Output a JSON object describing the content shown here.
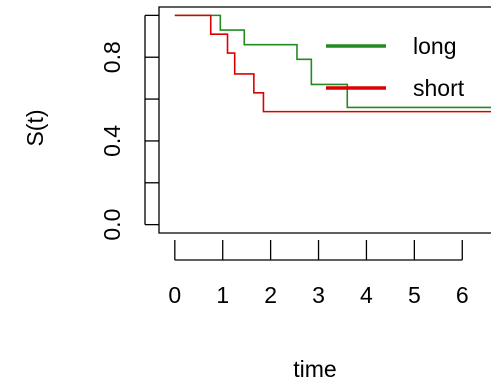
{
  "chart_data": {
    "type": "line",
    "plot": "survival step curves",
    "xlabel": "time",
    "ylabel": "S(t)",
    "xlim": [
      -0.33,
      6.6
    ],
    "ylim": [
      -0.04,
      1.04
    ],
    "x_ticks": [
      0,
      1,
      2,
      3,
      4,
      5,
      6
    ],
    "x_tick_labels": [
      "0",
      "1",
      "2",
      "3",
      "4",
      "5",
      "6"
    ],
    "y_ticks": [
      0.0,
      0.2,
      0.4,
      0.6,
      0.8,
      1.0
    ],
    "y_tick_labels": [
      "0.0",
      "",
      "0.4",
      "",
      "0.8",
      ""
    ],
    "grid": false,
    "legend": {
      "position": "top-right",
      "boxed": false
    },
    "series": [
      {
        "name": "long",
        "color": "#228B22",
        "steps": [
          {
            "x": 0.0,
            "y": 1.0
          },
          {
            "x": 0.95,
            "y": 0.93
          },
          {
            "x": 1.45,
            "y": 0.86
          },
          {
            "x": 2.55,
            "y": 0.79
          },
          {
            "x": 2.85,
            "y": 0.67
          },
          {
            "x": 3.6,
            "y": 0.56
          },
          {
            "x": 6.6,
            "y": 0.56
          }
        ]
      },
      {
        "name": "short",
        "color": "#DD0000",
        "steps": [
          {
            "x": 0.0,
            "y": 1.0
          },
          {
            "x": 0.75,
            "y": 0.91
          },
          {
            "x": 1.1,
            "y": 0.82
          },
          {
            "x": 1.25,
            "y": 0.72
          },
          {
            "x": 1.65,
            "y": 0.63
          },
          {
            "x": 1.85,
            "y": 0.54
          },
          {
            "x": 6.6,
            "y": 0.54
          }
        ]
      }
    ]
  }
}
